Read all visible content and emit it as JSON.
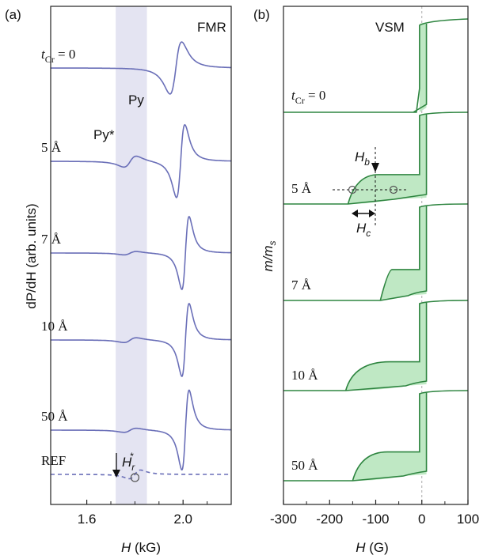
{
  "chart_data": [
    {
      "panel": "(a)",
      "type": "line",
      "title": "FMR",
      "xlabel_sym": "H",
      "xlabel_unit": "(kG)",
      "ylabel": "dP/dH (arb. units)",
      "xlim": [
        1.45,
        2.2
      ],
      "xticks": [
        1.6,
        2.0
      ],
      "xticklabels": [
        "1.6",
        "2.0"
      ],
      "highlight_band": [
        1.72,
        1.85
      ],
      "peak_labels": {
        "main": "Py",
        "secondary": "Py*"
      },
      "arrow_label": {
        "sym": "H",
        "sub": "r",
        "sup": "*"
      },
      "traces": [
        {
          "label_sym": "t",
          "label_sub": "Cr",
          "label_rest": " = 0",
          "Hr": 1.97,
          "dH": 0.042,
          "amp": 1.5,
          "sec": 0,
          "style": "solid"
        },
        {
          "label": "5 Å",
          "Hr": 1.99,
          "dH": 0.03,
          "amp": 2.1,
          "sec": 0.32,
          "style": "solid"
        },
        {
          "label": "7 Å",
          "Hr": 2.01,
          "dH": 0.026,
          "amp": 2.1,
          "sec": 0.1,
          "style": "solid"
        },
        {
          "label": "10 Å",
          "Hr": 2.01,
          "dH": 0.026,
          "amp": 2.1,
          "sec": 0.14,
          "style": "solid"
        },
        {
          "label": "50 Å",
          "Hr": 2.01,
          "dH": 0.026,
          "amp": 2.3,
          "sec": 0.12,
          "style": "solid"
        },
        {
          "label": "REF",
          "Hr": 1.8,
          "dH": 0.04,
          "amp": 0.25,
          "sec": 0,
          "style": "dashed"
        }
      ],
      "color": "#6a6fb8"
    },
    {
      "panel": "(b)",
      "type": "line",
      "title": "VSM",
      "xlabel_sym": "H",
      "xlabel_unit": "(G)",
      "ylabel_m": "m",
      "ylabel_ms": "m",
      "ylabel_sub": "s",
      "xlim": [
        -300,
        100
      ],
      "xticks": [
        -300,
        -200,
        -100,
        0,
        100
      ],
      "xticklabels": [
        "-300",
        "-200",
        "-100",
        "0",
        "100"
      ],
      "annotations": {
        "Hb_sym": "H",
        "Hb_sub": "b",
        "Hc_sym": "H",
        "Hc_sub": "c"
      },
      "loops": [
        {
          "label_sym": "t",
          "label_sub": "Cr",
          "label_rest": " = 0",
          "minor_w": 0
        },
        {
          "label": "5 Å",
          "minor_w": 100,
          "minor_center": -110
        },
        {
          "label": "7 Å",
          "minor_w": 60,
          "minor_center": -60
        },
        {
          "label": "10 Å",
          "minor_w": 130,
          "minor_center": -100
        },
        {
          "label": "50 Å",
          "minor_w": 110,
          "minor_center": -95
        }
      ],
      "line_color": "#2e8540",
      "fill_color": "#bfe8c4"
    }
  ]
}
